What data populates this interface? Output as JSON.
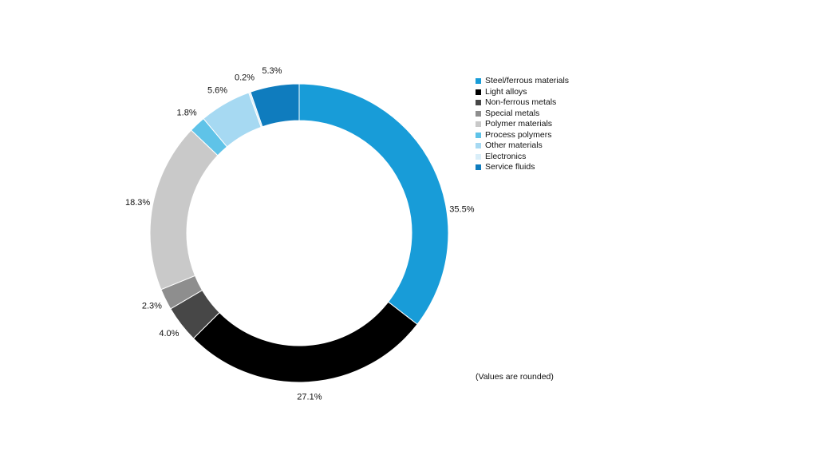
{
  "chart_data": {
    "type": "pie",
    "subtype": "donut",
    "title": "",
    "note": "(Values are rounded)",
    "start_angle_deg": 0,
    "direction": "clockwise",
    "legend_position": "right",
    "series": [
      {
        "label": "Steel/ferrous materials",
        "value": 35.5,
        "display": "35.5%",
        "color": "#189CD8"
      },
      {
        "label": "Light alloys",
        "value": 27.1,
        "display": "27.1%",
        "color": "#000000"
      },
      {
        "label": "Non-ferrous metals",
        "value": 4.0,
        "display": "4.0%",
        "color": "#474747"
      },
      {
        "label": "Special metals",
        "value": 2.3,
        "display": "2.3%",
        "color": "#8E8E8E"
      },
      {
        "label": "Polymer materials",
        "value": 18.3,
        "display": "18.3%",
        "color": "#C9C9C9"
      },
      {
        "label": "Process polymers",
        "value": 1.8,
        "display": "1.8%",
        "color": "#5FC3E8"
      },
      {
        "label": "Other materials",
        "value": 5.6,
        "display": "5.6%",
        "color": "#A6D9F2"
      },
      {
        "label": "Electronics",
        "value": 0.2,
        "display": "0.2%",
        "color": "#D9EEF9"
      },
      {
        "label": "Service fluids",
        "value": 5.3,
        "display": "5.3%",
        "color": "#0F7CBE"
      }
    ]
  }
}
